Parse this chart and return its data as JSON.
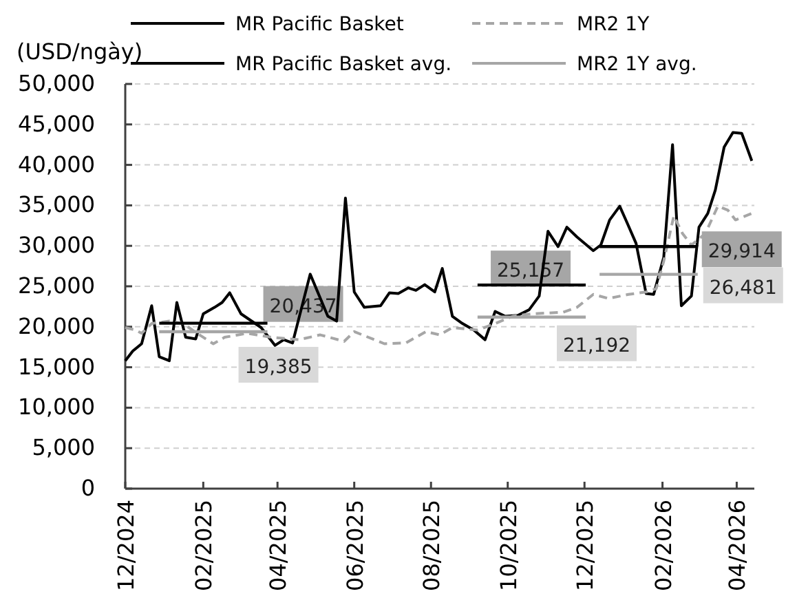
{
  "chart_data": {
    "type": "line",
    "ylabel": "(USD/ngày)",
    "xlim": [
      "2024-12-01",
      "2026-04-15"
    ],
    "xticks": [
      {
        "value": "2024-12-01",
        "label": "12/2024"
      },
      {
        "value": "2025-02-01",
        "label": "02/2025"
      },
      {
        "value": "2025-04-01",
        "label": "04/2025"
      },
      {
        "value": "2025-06-01",
        "label": "06/2025"
      },
      {
        "value": "2025-08-01",
        "label": "08/2025"
      },
      {
        "value": "2025-10-01",
        "label": "10/2025"
      },
      {
        "value": "2025-12-01",
        "label": "12/2025"
      },
      {
        "value": "2026-02-01",
        "label": "02/2026"
      },
      {
        "value": "2026-04-01",
        "label": "04/2026"
      }
    ],
    "ylim": [
      0,
      50000
    ],
    "yticks": [
      {
        "value": 0,
        "label": "0"
      },
      {
        "value": 5000,
        "label": "5,000"
      },
      {
        "value": 10000,
        "label": "10,000"
      },
      {
        "value": 15000,
        "label": "15,000"
      },
      {
        "value": 20000,
        "label": "20,000"
      },
      {
        "value": 25000,
        "label": "25,000"
      },
      {
        "value": 30000,
        "label": "30,000"
      },
      {
        "value": 35000,
        "label": "35,000"
      },
      {
        "value": 40000,
        "label": "40,000"
      },
      {
        "value": 45000,
        "label": "45,000"
      },
      {
        "value": 50000,
        "label": "50,000"
      }
    ],
    "grid": "y",
    "legend": "top",
    "marker": "none",
    "series": [
      {
        "name": "MR Pacific Basket",
        "color": "#000000",
        "line_style": "solid",
        "x": [
          "2024-12-01",
          "2024-12-07",
          "2024-12-14",
          "2024-12-22",
          "2024-12-28",
          "2025-01-05",
          "2025-01-11",
          "2025-01-18",
          "2025-01-26",
          "2025-02-01",
          "2025-02-10",
          "2025-02-16",
          "2025-02-22",
          "2025-03-03",
          "2025-03-19",
          "2025-03-30",
          "2025-04-06",
          "2025-04-13",
          "2025-04-27",
          "2025-05-11",
          "2025-05-18",
          "2025-05-25",
          "2025-06-01",
          "2025-06-09",
          "2025-06-22",
          "2025-06-29",
          "2025-07-06",
          "2025-07-14",
          "2025-07-20",
          "2025-07-27",
          "2025-08-04",
          "2025-08-10",
          "2025-08-18",
          "2025-08-26",
          "2025-09-04",
          "2025-09-13",
          "2025-09-21",
          "2025-09-29",
          "2025-10-09",
          "2025-10-18",
          "2025-10-26",
          "2025-11-02",
          "2025-11-10",
          "2025-11-17",
          "2025-11-25",
          "2025-12-08",
          "2025-12-14",
          "2025-12-21",
          "2025-12-29",
          "2026-01-04",
          "2026-01-11",
          "2026-01-19",
          "2026-01-25",
          "2026-02-02",
          "2026-02-09",
          "2026-02-16",
          "2026-02-24",
          "2026-03-02",
          "2026-03-09",
          "2026-03-15",
          "2026-03-22",
          "2026-03-29",
          "2026-04-05",
          "2026-04-13"
        ],
        "values": [
          15800,
          17000,
          17900,
          22600,
          16300,
          15800,
          23000,
          18700,
          18500,
          21600,
          22400,
          23000,
          24200,
          21600,
          19900,
          17700,
          18400,
          18000,
          26500,
          21300,
          20700,
          35900,
          24300,
          22400,
          22600,
          24200,
          24100,
          24800,
          24500,
          25200,
          24300,
          27200,
          21300,
          20400,
          19600,
          18400,
          21900,
          21300,
          21400,
          22100,
          23800,
          31800,
          29900,
          32300,
          31100,
          29400,
          30100,
          33200,
          34900,
          32800,
          30300,
          24100,
          24000,
          28600,
          42500,
          22600,
          23800,
          32300,
          34000,
          36900,
          42200,
          44000,
          43900,
          40500
        ]
      },
      {
        "name": "MR2 1Y",
        "color": "#a6a6a6",
        "line_style": "dashed",
        "x": [
          "2024-12-01",
          "2024-12-09",
          "2024-12-14",
          "2024-12-22",
          "2025-01-05",
          "2025-01-16",
          "2025-01-27",
          "2025-02-09",
          "2025-02-18",
          "2025-03-08",
          "2025-03-27",
          "2025-04-18",
          "2025-05-05",
          "2025-05-24",
          "2025-06-01",
          "2025-06-25",
          "2025-07-12",
          "2025-07-28",
          "2025-08-08",
          "2025-08-18",
          "2025-09-07",
          "2025-09-21",
          "2025-10-05",
          "2025-10-20",
          "2025-11-14",
          "2025-11-25",
          "2025-12-08",
          "2025-12-20",
          "2026-01-05",
          "2026-01-19",
          "2026-01-27",
          "2026-02-02",
          "2026-02-10",
          "2026-02-17",
          "2026-02-24",
          "2026-03-07",
          "2026-03-17",
          "2026-03-25",
          "2026-03-31",
          "2026-04-13"
        ],
        "values": [
          19900,
          19600,
          19200,
          20400,
          20700,
          20400,
          19200,
          17900,
          18700,
          19200,
          18700,
          18400,
          19000,
          18200,
          19400,
          17900,
          18000,
          19400,
          19000,
          19900,
          19600,
          20400,
          21300,
          21600,
          21800,
          22400,
          24000,
          23500,
          24000,
          24300,
          24700,
          28100,
          33700,
          31500,
          30100,
          31500,
          34900,
          34400,
          33200,
          34000
        ]
      },
      {
        "name": "MR Pacific Basket avg.",
        "color": "#000000",
        "line_style": "solid",
        "x": [
          "2024-12-28",
          "2025-03-24",
          "2025-03-25",
          "2025-09-07",
          "2025-12-02",
          "2025-12-03",
          "2025-12-13",
          "2026-03-01"
        ],
        "values": [
          20437,
          20437,
          null,
          25157,
          25157,
          null,
          29914,
          29914
        ],
        "value_labels": [
          null,
          "20,437",
          null,
          null,
          "25,157",
          null,
          null,
          "29,914"
        ]
      },
      {
        "name": "MR2 1Y avg.",
        "color": "#a6a6a6",
        "line_style": "solid",
        "x": [
          "2024-12-28",
          "2025-03-24",
          "2025-03-25",
          "2025-09-07",
          "2025-12-02",
          "2025-12-03",
          "2025-12-13",
          "2026-03-01"
        ],
        "values": [
          19385,
          19385,
          null,
          21192,
          21192,
          null,
          26481,
          26481
        ],
        "value_labels": [
          null,
          "19,385",
          null,
          null,
          "21,192",
          null,
          null,
          "26,481"
        ]
      }
    ]
  }
}
